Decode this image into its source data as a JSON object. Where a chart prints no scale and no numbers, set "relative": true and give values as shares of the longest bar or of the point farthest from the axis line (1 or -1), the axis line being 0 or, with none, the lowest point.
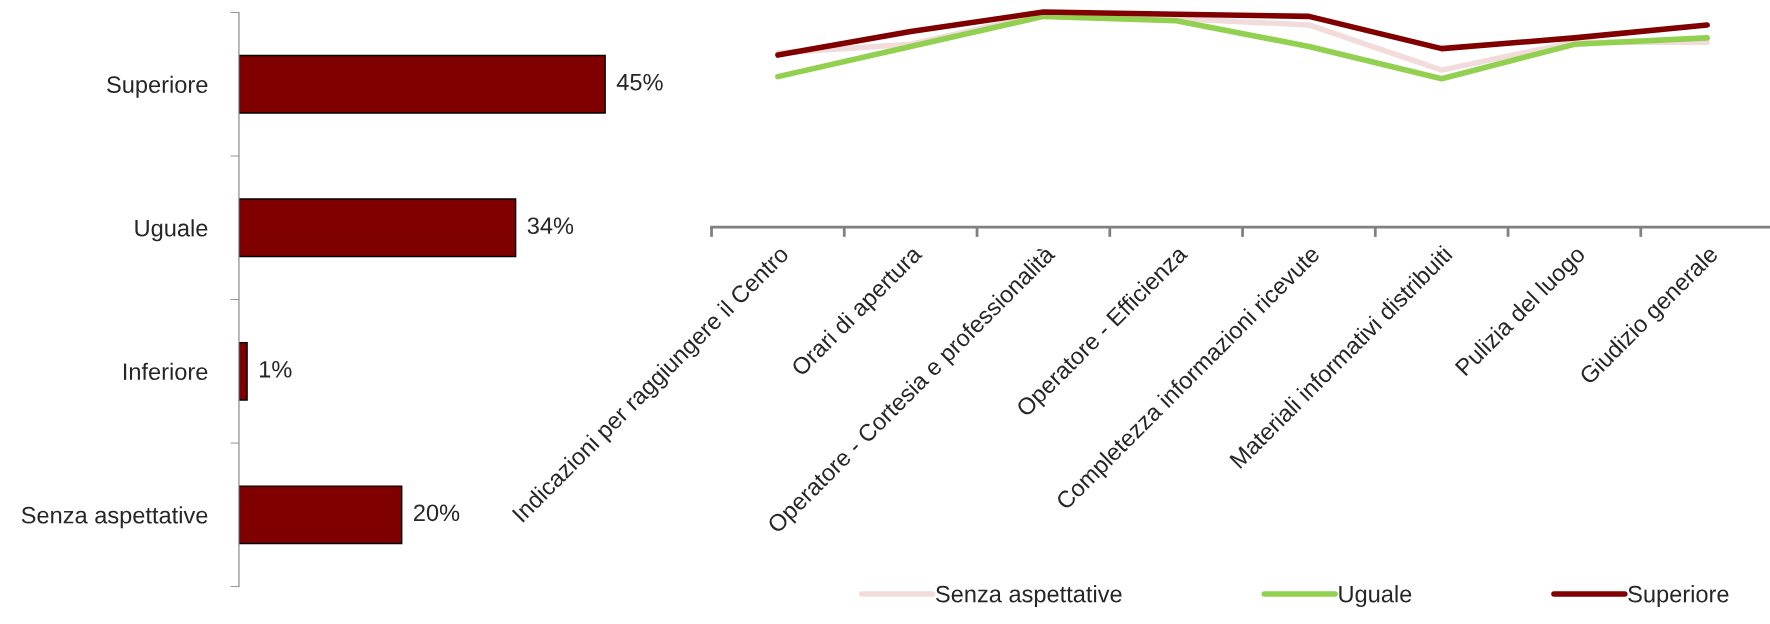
{
  "chart_data": [
    {
      "type": "bar",
      "orientation": "horizontal",
      "categories": [
        "Superiore",
        "Uguale",
        "Inferiore",
        "Senza aspettative"
      ],
      "values": [
        45,
        34,
        1,
        20
      ],
      "value_labels": [
        "45%",
        "34%",
        "1%",
        "20%"
      ],
      "color": "#800000"
    },
    {
      "type": "line",
      "relative": true,
      "categories": [
        "Indicazioni per raggiungere il Centro",
        "Orari di apertura",
        "Operatore - Cortesia e professionalità",
        "Operatore - Efficienza",
        "Completezza informazioni ricevute",
        "Materiali informativi distribuiti",
        "Pulizia del luogo",
        "Giudizio generale"
      ],
      "legend": "bottom",
      "series": [
        {
          "name": "Senza aspettative",
          "color": "#f2dcdb",
          "values": [
            0.81,
            0.85,
            0.99,
            0.97,
            0.94,
            0.73,
            0.86,
            0.86
          ]
        },
        {
          "name": "Uguale",
          "color": "#92d050",
          "values": [
            0.7,
            0.84,
            0.98,
            0.96,
            0.84,
            0.69,
            0.85,
            0.88
          ]
        },
        {
          "name": "Superiore",
          "color": "#800000",
          "values": [
            0.8,
            0.91,
            1.0,
            0.99,
            0.98,
            0.83,
            0.88,
            0.94
          ]
        }
      ]
    }
  ]
}
